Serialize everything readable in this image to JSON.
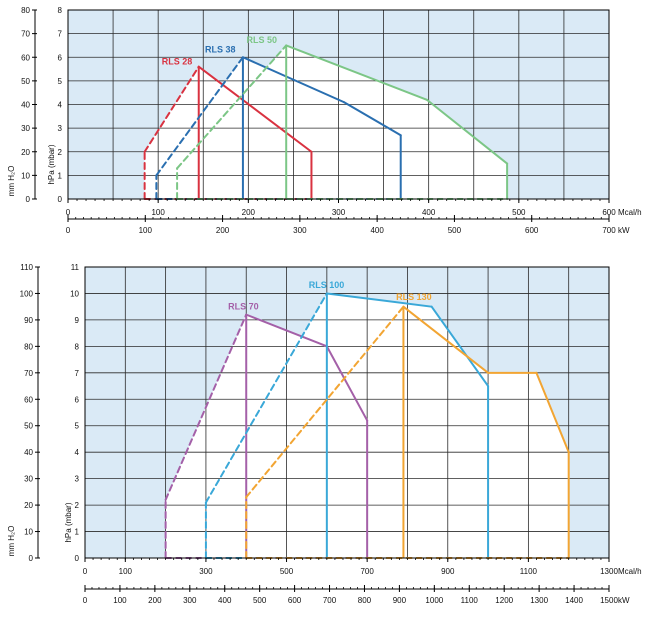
{
  "colors": {
    "panel_fill": "#daeaf6",
    "envelope_fill": "#ffffff",
    "grid": "#2b2b2b",
    "axis": "#000000"
  },
  "chart_data": [
    {
      "type": "line",
      "name_id": "top",
      "xlim": [
        0,
        600
      ],
      "ylim": [
        0,
        8
      ],
      "x_ticks": [
        0,
        100,
        200,
        300,
        400,
        500,
        600
      ],
      "y_ticks": [
        0,
        1,
        2,
        3,
        4,
        5,
        6,
        7,
        8
      ],
      "x_unit": "Mcal/h",
      "kw_axis": {
        "max": 700,
        "ticks": [
          0,
          100,
          200,
          300,
          400,
          500,
          600,
          700
        ],
        "unit": "kW"
      },
      "mmh2o_axis": {
        "max": 80,
        "ticks": [
          0,
          10,
          20,
          30,
          40,
          50,
          60,
          70,
          80
        ],
        "label": "mm H₂O"
      },
      "hpa_label": "hPa (mbar)",
      "series": [
        {
          "name": "RLS 28",
          "color": "#d93240",
          "points": [
            [
              85,
              0
            ],
            [
              85,
              2
            ],
            [
              145,
              5.6
            ],
            [
              145,
              5.6
            ],
            [
              270,
              2
            ],
            [
              270,
              0
            ]
          ],
          "dash_until": 2,
          "vline_x": 145,
          "label_at": [
            104,
            5.7
          ]
        },
        {
          "name": "RLS 38",
          "color": "#2a6fb0",
          "points": [
            [
              98,
              0
            ],
            [
              98,
              1
            ],
            [
              194,
              6
            ],
            [
              194,
              6
            ],
            [
              306,
              4.1
            ],
            [
              369,
              2.7
            ],
            [
              369,
              0
            ]
          ],
          "dash_until": 2,
          "vline_x": 194,
          "label_at": [
            152,
            6.2
          ]
        },
        {
          "name": "RLS 50",
          "color": "#7cc686",
          "points": [
            [
              121,
              0
            ],
            [
              121,
              1.3
            ],
            [
              242,
              6.5
            ],
            [
              242,
              6.5
            ],
            [
              398,
              4.2
            ],
            [
              487,
              1.5
            ],
            [
              487,
              0
            ]
          ],
          "dash_until": 2,
          "vline_x": 242,
          "label_at": [
            198,
            6.6
          ]
        }
      ]
    },
    {
      "type": "line",
      "name_id": "bottom",
      "xlim": [
        0,
        1300
      ],
      "ylim": [
        0,
        11
      ],
      "x_ticks": [
        0,
        100,
        300,
        500,
        700,
        900,
        1100,
        1300
      ],
      "y_ticks": [
        0,
        1,
        2,
        3,
        4,
        5,
        6,
        7,
        8,
        9,
        10,
        11
      ],
      "x_unit": "Mcal/h",
      "kw_axis": {
        "max": 1500,
        "ticks": [
          0,
          100,
          200,
          300,
          400,
          500,
          600,
          700,
          800,
          900,
          1000,
          1100,
          1200,
          1300,
          1400,
          1500
        ],
        "unit": "kW"
      },
      "mmh2o_axis": {
        "max": 110,
        "ticks": [
          0,
          10,
          20,
          30,
          40,
          50,
          60,
          70,
          80,
          90,
          100,
          110
        ],
        "label": "mm H₂O"
      },
      "hpa_label": "hPa (mbar)",
      "series": [
        {
          "name": "RLS 70",
          "color": "#a460a8",
          "points": [
            [
              200,
              0
            ],
            [
              200,
              2.2
            ],
            [
              400,
              9.2
            ],
            [
              400,
              9.2
            ],
            [
              600,
              8
            ],
            [
              700,
              5.2
            ],
            [
              700,
              0
            ]
          ],
          "dash_until": 2,
          "vline_x": 400,
          "label_at": [
            355,
            9.4
          ]
        },
        {
          "name": "RLS 100",
          "color": "#3aa8d8",
          "points": [
            [
              300,
              0
            ],
            [
              300,
              2.1
            ],
            [
              600,
              10
            ],
            [
              600,
              10
            ],
            [
              860,
              9.5
            ],
            [
              1000,
              6.5
            ],
            [
              1000,
              0
            ]
          ],
          "dash_until": 2,
          "vline_x": 600,
          "label_at": [
            555,
            10.2
          ]
        },
        {
          "name": "RLS 130",
          "color": "#f2a533",
          "points": [
            [
              400,
              0
            ],
            [
              400,
              2.3
            ],
            [
              790,
              9.5
            ],
            [
              790,
              9.5
            ],
            [
              1000,
              7
            ],
            [
              1120,
              7
            ],
            [
              1200,
              4
            ],
            [
              1200,
              0
            ]
          ],
          "dash_until": 2,
          "vline_x": 790,
          "label_at": [
            772,
            9.75
          ]
        }
      ]
    }
  ]
}
